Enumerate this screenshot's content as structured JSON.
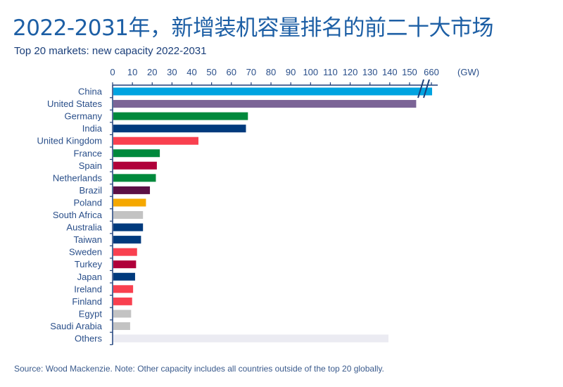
{
  "title": "2022-2031年，新增装机容量排名的前二十大市场",
  "subtitle": "Top 20 markets: new capacity 2022-2031",
  "source": "Source: Wood Mackenzie. Note: Other capacity includes all countries outside of the top 20 globally.",
  "chart_data": {
    "type": "bar",
    "orientation": "horizontal",
    "title": "Top 20 markets: new capacity 2022-2031",
    "xlabel": "(GW)",
    "xlim": [
      0,
      160
    ],
    "axis_break": "between 150 and 660",
    "x_ticks": [
      "0",
      "10",
      "20",
      "30",
      "40",
      "50",
      "60",
      "70",
      "80",
      "90",
      "100",
      "110",
      "120",
      "130",
      "140",
      "150",
      "660"
    ],
    "categories": [
      "China",
      "United States",
      "Germany",
      "India",
      "United Kingdom",
      "France",
      "Spain",
      "Netherlands",
      "Brazil",
      "Poland",
      "South Africa",
      "Australia",
      "Taiwan",
      "Sweden",
      "Turkey",
      "Japan",
      "Ireland",
      "Finland",
      "Egypt",
      "Saudi Arabia",
      "Others"
    ],
    "values": [
      660,
      153,
      68,
      67,
      43,
      23.5,
      22,
      21.5,
      18.5,
      16.5,
      15,
      15,
      14,
      12,
      11.5,
      11,
      10,
      9.5,
      9,
      8.5,
      139
    ],
    "colors": [
      "#00a3e0",
      "#7b6496",
      "#00893c",
      "#003a7d",
      "#f9404f",
      "#00893c",
      "#b0003a",
      "#00893c",
      "#5c0f45",
      "#f5a800",
      "#c3c3c3",
      "#003a7d",
      "#003a7d",
      "#f9404f",
      "#b0003a",
      "#003a7d",
      "#f9404f",
      "#f9404f",
      "#c3c3c3",
      "#c3c3c3",
      "#ebebf2"
    ]
  }
}
